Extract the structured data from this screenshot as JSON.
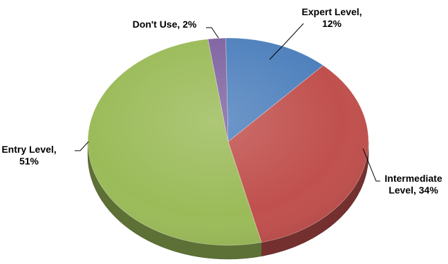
{
  "chart_data": {
    "type": "pie",
    "slices": [
      {
        "label": "Expert Level",
        "label_lines": [
          "Expert Level,",
          "12%"
        ],
        "value": 12,
        "color": "#4F81BD"
      },
      {
        "label": "Intermediate Level",
        "label_lines": [
          "Intermediate",
          "Level, 34%"
        ],
        "value": 34,
        "color": "#C0504D"
      },
      {
        "label": "Entry Level",
        "label_lines": [
          "Entry Level,",
          "51%"
        ],
        "value": 51,
        "color": "#9BBB59"
      },
      {
        "label": "Don't Use",
        "label_lines": [
          "Don't Use, 2%"
        ],
        "value": 2,
        "color": "#8064A2"
      }
    ],
    "title": "",
    "legend": "none",
    "style": "3d"
  }
}
